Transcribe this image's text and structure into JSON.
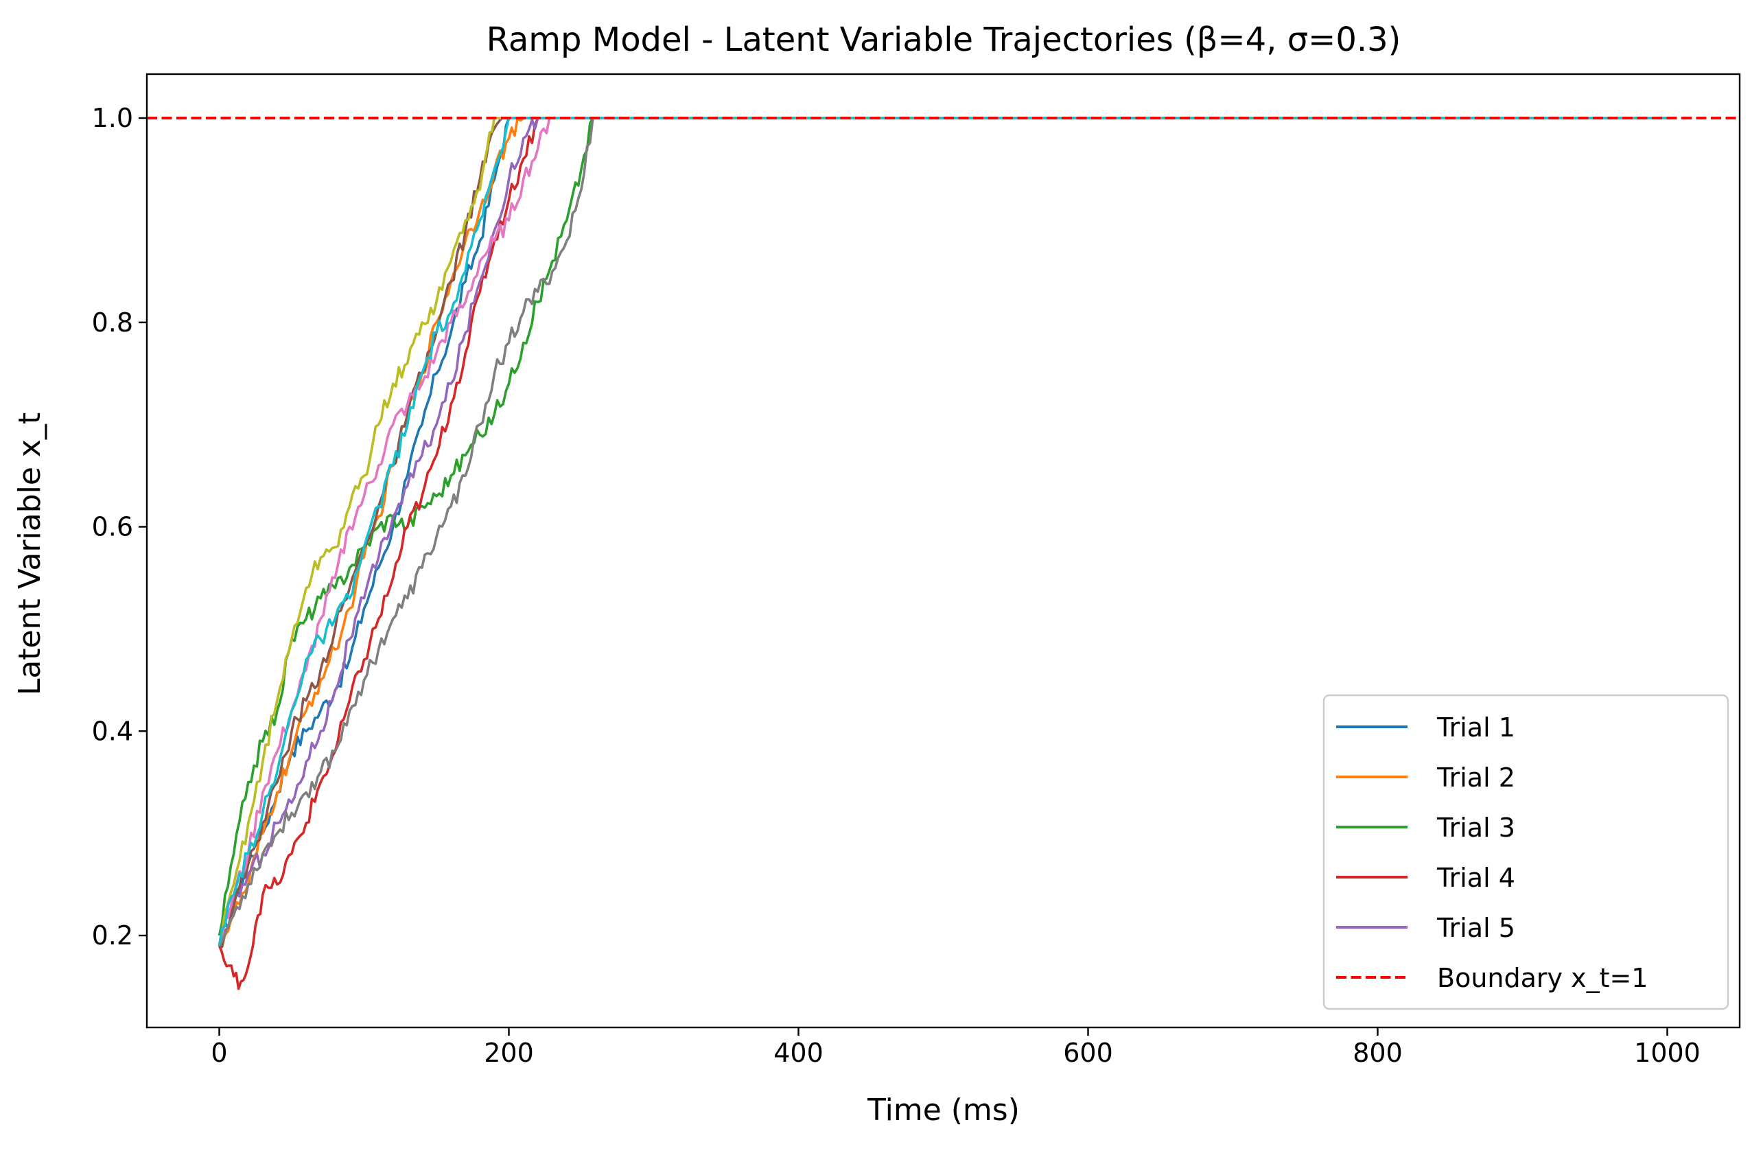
{
  "chart_data": {
    "type": "line",
    "title": "Ramp Model - Latent Variable Trajectories (β=4, σ=0.3)",
    "xlabel": "Time (ms)",
    "ylabel": "Latent Variable x_t",
    "xlim": [
      -50,
      1050
    ],
    "ylim": [
      0.11,
      1.043
    ],
    "xticks": [
      0,
      200,
      400,
      600,
      800,
      1000
    ],
    "xtick_labels": [
      "0",
      "200",
      "400",
      "600",
      "800",
      "1000"
    ],
    "yticks": [
      0.2,
      0.4,
      0.6,
      0.8,
      1.0
    ],
    "ytick_labels": [
      "0.2",
      "0.4",
      "0.6",
      "0.8",
      "1.0"
    ],
    "grid": false,
    "legend_position": "lower-right",
    "boundary": {
      "name": "Boundary x_t=1",
      "y": 1.0,
      "color": "#ff0000",
      "style": "dashed"
    },
    "series": [
      {
        "name": "Trial 1",
        "color": "#1f77b4",
        "in_legend": true,
        "points": [
          [
            0,
            0.19
          ],
          [
            10,
            0.23
          ],
          [
            20,
            0.27
          ],
          [
            30,
            0.3
          ],
          [
            40,
            0.34
          ],
          [
            50,
            0.38
          ],
          [
            60,
            0.4
          ],
          [
            70,
            0.42
          ],
          [
            80,
            0.44
          ],
          [
            90,
            0.47
          ],
          [
            100,
            0.52
          ],
          [
            110,
            0.56
          ],
          [
            120,
            0.6
          ],
          [
            130,
            0.65
          ],
          [
            140,
            0.7
          ],
          [
            150,
            0.75
          ],
          [
            160,
            0.79
          ],
          [
            170,
            0.84
          ],
          [
            180,
            0.88
          ],
          [
            190,
            0.94
          ],
          [
            200,
            1.0
          ],
          [
            1000,
            1.0
          ]
        ]
      },
      {
        "name": "Trial 2",
        "color": "#ff7f0e",
        "in_legend": true,
        "points": [
          [
            0,
            0.19
          ],
          [
            10,
            0.22
          ],
          [
            20,
            0.25
          ],
          [
            30,
            0.3
          ],
          [
            40,
            0.34
          ],
          [
            50,
            0.38
          ],
          [
            60,
            0.42
          ],
          [
            70,
            0.45
          ],
          [
            80,
            0.48
          ],
          [
            90,
            0.52
          ],
          [
            100,
            0.57
          ],
          [
            110,
            0.61
          ],
          [
            120,
            0.66
          ],
          [
            130,
            0.71
          ],
          [
            140,
            0.75
          ],
          [
            150,
            0.8
          ],
          [
            160,
            0.84
          ],
          [
            170,
            0.88
          ],
          [
            180,
            0.91
          ],
          [
            190,
            0.95
          ],
          [
            200,
            0.98
          ],
          [
            210,
            1.0
          ],
          [
            1000,
            1.0
          ]
        ]
      },
      {
        "name": "Trial 3",
        "color": "#2ca02c",
        "in_legend": true,
        "points": [
          [
            0,
            0.2
          ],
          [
            10,
            0.28
          ],
          [
            20,
            0.35
          ],
          [
            30,
            0.39
          ],
          [
            40,
            0.42
          ],
          [
            50,
            0.49
          ],
          [
            60,
            0.51
          ],
          [
            70,
            0.53
          ],
          [
            80,
            0.54
          ],
          [
            90,
            0.56
          ],
          [
            100,
            0.58
          ],
          [
            110,
            0.6
          ],
          [
            120,
            0.61
          ],
          [
            130,
            0.6
          ],
          [
            140,
            0.62
          ],
          [
            150,
            0.63
          ],
          [
            160,
            0.65
          ],
          [
            170,
            0.67
          ],
          [
            180,
            0.69
          ],
          [
            190,
            0.71
          ],
          [
            200,
            0.74
          ],
          [
            210,
            0.78
          ],
          [
            220,
            0.82
          ],
          [
            230,
            0.86
          ],
          [
            240,
            0.9
          ],
          [
            250,
            0.95
          ],
          [
            258,
            1.0
          ],
          [
            1000,
            1.0
          ]
        ]
      },
      {
        "name": "Trial 4",
        "color": "#d62728",
        "in_legend": true,
        "points": [
          [
            0,
            0.19
          ],
          [
            5,
            0.17
          ],
          [
            10,
            0.16
          ],
          [
            15,
            0.155
          ],
          [
            20,
            0.17
          ],
          [
            25,
            0.21
          ],
          [
            30,
            0.24
          ],
          [
            40,
            0.25
          ],
          [
            50,
            0.28
          ],
          [
            60,
            0.31
          ],
          [
            70,
            0.35
          ],
          [
            80,
            0.38
          ],
          [
            90,
            0.43
          ],
          [
            100,
            0.47
          ],
          [
            110,
            0.51
          ],
          [
            120,
            0.55
          ],
          [
            130,
            0.6
          ],
          [
            140,
            0.63
          ],
          [
            150,
            0.67
          ],
          [
            160,
            0.72
          ],
          [
            170,
            0.77
          ],
          [
            180,
            0.83
          ],
          [
            190,
            0.88
          ],
          [
            200,
            0.92
          ],
          [
            210,
            0.96
          ],
          [
            220,
            1.0
          ],
          [
            1000,
            1.0
          ]
        ]
      },
      {
        "name": "Trial 5",
        "color": "#9467bd",
        "in_legend": true,
        "points": [
          [
            0,
            0.19
          ],
          [
            10,
            0.23
          ],
          [
            20,
            0.26
          ],
          [
            30,
            0.28
          ],
          [
            40,
            0.31
          ],
          [
            50,
            0.33
          ],
          [
            60,
            0.37
          ],
          [
            70,
            0.4
          ],
          [
            80,
            0.44
          ],
          [
            90,
            0.49
          ],
          [
            100,
            0.53
          ],
          [
            110,
            0.57
          ],
          [
            120,
            0.61
          ],
          [
            130,
            0.64
          ],
          [
            140,
            0.67
          ],
          [
            150,
            0.7
          ],
          [
            160,
            0.74
          ],
          [
            170,
            0.79
          ],
          [
            180,
            0.84
          ],
          [
            190,
            0.89
          ],
          [
            200,
            0.94
          ],
          [
            210,
            0.98
          ],
          [
            220,
            1.0
          ],
          [
            1000,
            1.0
          ]
        ]
      },
      {
        "name": "",
        "color": "#8c564b",
        "in_legend": false,
        "points": [
          [
            0,
            0.19
          ],
          [
            10,
            0.23
          ],
          [
            20,
            0.27
          ],
          [
            30,
            0.31
          ],
          [
            40,
            0.35
          ],
          [
            50,
            0.4
          ],
          [
            60,
            0.43
          ],
          [
            70,
            0.46
          ],
          [
            80,
            0.5
          ],
          [
            90,
            0.54
          ],
          [
            100,
            0.58
          ],
          [
            110,
            0.62
          ],
          [
            120,
            0.66
          ],
          [
            130,
            0.71
          ],
          [
            140,
            0.75
          ],
          [
            150,
            0.79
          ],
          [
            160,
            0.84
          ],
          [
            170,
            0.89
          ],
          [
            180,
            0.94
          ],
          [
            190,
            0.99
          ],
          [
            195,
            1.0
          ],
          [
            1000,
            1.0
          ]
        ]
      },
      {
        "name": "",
        "color": "#e377c2",
        "in_legend": false,
        "points": [
          [
            0,
            0.19
          ],
          [
            10,
            0.24
          ],
          [
            20,
            0.28
          ],
          [
            30,
            0.34
          ],
          [
            40,
            0.38
          ],
          [
            50,
            0.42
          ],
          [
            60,
            0.46
          ],
          [
            70,
            0.51
          ],
          [
            80,
            0.55
          ],
          [
            90,
            0.6
          ],
          [
            100,
            0.63
          ],
          [
            110,
            0.66
          ],
          [
            120,
            0.7
          ],
          [
            130,
            0.72
          ],
          [
            140,
            0.74
          ],
          [
            150,
            0.77
          ],
          [
            160,
            0.8
          ],
          [
            170,
            0.82
          ],
          [
            180,
            0.86
          ],
          [
            190,
            0.88
          ],
          [
            200,
            0.9
          ],
          [
            210,
            0.94
          ],
          [
            220,
            0.97
          ],
          [
            228,
            1.0
          ],
          [
            1000,
            1.0
          ]
        ]
      },
      {
        "name": "",
        "color": "#7f7f7f",
        "in_legend": false,
        "points": [
          [
            0,
            0.19
          ],
          [
            10,
            0.22
          ],
          [
            20,
            0.25
          ],
          [
            30,
            0.28
          ],
          [
            40,
            0.3
          ],
          [
            50,
            0.32
          ],
          [
            60,
            0.34
          ],
          [
            70,
            0.36
          ],
          [
            80,
            0.38
          ],
          [
            90,
            0.42
          ],
          [
            100,
            0.45
          ],
          [
            110,
            0.48
          ],
          [
            120,
            0.51
          ],
          [
            130,
            0.53
          ],
          [
            140,
            0.56
          ],
          [
            150,
            0.59
          ],
          [
            160,
            0.62
          ],
          [
            170,
            0.65
          ],
          [
            180,
            0.7
          ],
          [
            190,
            0.75
          ],
          [
            200,
            0.78
          ],
          [
            210,
            0.81
          ],
          [
            220,
            0.83
          ],
          [
            230,
            0.85
          ],
          [
            240,
            0.88
          ],
          [
            250,
            0.93
          ],
          [
            258,
            1.0
          ],
          [
            1000,
            1.0
          ]
        ]
      },
      {
        "name": "",
        "color": "#bcbd22",
        "in_legend": false,
        "points": [
          [
            0,
            0.19
          ],
          [
            10,
            0.25
          ],
          [
            20,
            0.31
          ],
          [
            30,
            0.37
          ],
          [
            40,
            0.43
          ],
          [
            50,
            0.49
          ],
          [
            60,
            0.54
          ],
          [
            70,
            0.57
          ],
          [
            80,
            0.58
          ],
          [
            90,
            0.62
          ],
          [
            100,
            0.65
          ],
          [
            110,
            0.7
          ],
          [
            120,
            0.74
          ],
          [
            130,
            0.76
          ],
          [
            140,
            0.8
          ],
          [
            150,
            0.82
          ],
          [
            160,
            0.86
          ],
          [
            170,
            0.9
          ],
          [
            180,
            0.93
          ],
          [
            185,
            0.97
          ],
          [
            190,
            1.0
          ],
          [
            1000,
            1.0
          ]
        ]
      },
      {
        "name": "",
        "color": "#17becf",
        "in_legend": false,
        "points": [
          [
            0,
            0.19
          ],
          [
            10,
            0.24
          ],
          [
            20,
            0.28
          ],
          [
            30,
            0.32
          ],
          [
            40,
            0.36
          ],
          [
            50,
            0.42
          ],
          [
            60,
            0.47
          ],
          [
            70,
            0.49
          ],
          [
            80,
            0.51
          ],
          [
            90,
            0.53
          ],
          [
            100,
            0.58
          ],
          [
            110,
            0.62
          ],
          [
            120,
            0.66
          ],
          [
            130,
            0.7
          ],
          [
            140,
            0.75
          ],
          [
            150,
            0.79
          ],
          [
            160,
            0.81
          ],
          [
            170,
            0.85
          ],
          [
            180,
            0.9
          ],
          [
            190,
            0.95
          ],
          [
            200,
            1.0
          ],
          [
            1000,
            1.0
          ]
        ]
      }
    ]
  }
}
